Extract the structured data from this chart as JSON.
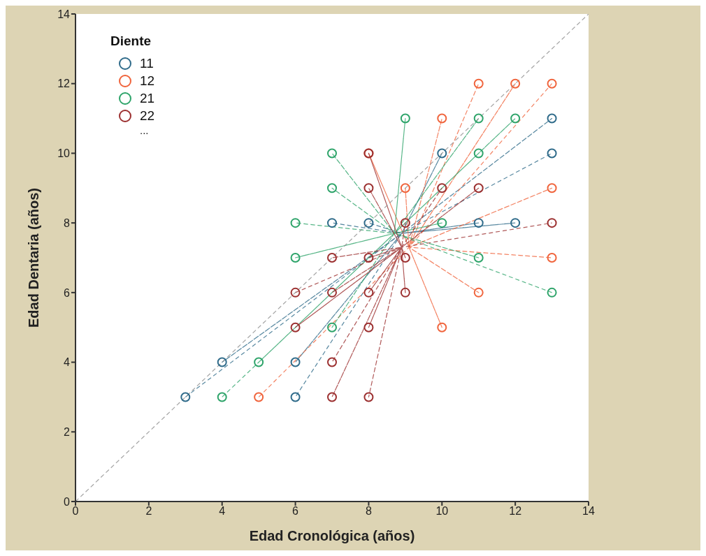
{
  "chart_data": {
    "type": "scatter",
    "xlabel": "Edad Cronológica (años)",
    "ylabel": "Edad Dentaria (años)",
    "legend_title": "Diente",
    "legend": "top left",
    "grid": false,
    "marker": "circle",
    "xlim": [
      0,
      14
    ],
    "ylim": [
      0,
      14
    ],
    "xticks": [
      0,
      2,
      4,
      6,
      8,
      10,
      12,
      14
    ],
    "yticks": [
      0,
      2,
      4,
      6,
      8,
      10,
      12,
      14
    ],
    "annotations": [
      "..."
    ],
    "series": [
      {
        "name": "11",
        "color": "#2f6b8a",
        "x": [
          3,
          4,
          6,
          6,
          7,
          8,
          10,
          11,
          12,
          13,
          13
        ],
        "values": [
          3,
          4,
          4,
          3,
          8,
          8,
          10,
          8,
          8,
          11,
          10
        ]
      },
      {
        "name": "12",
        "color": "#f0643c",
        "x": [
          5,
          8,
          9,
          10,
          10,
          11,
          11,
          12,
          13,
          13,
          13
        ],
        "values": [
          3,
          10,
          9,
          11,
          5,
          6,
          12,
          12,
          9,
          7,
          12
        ]
      },
      {
        "name": "21",
        "color": "#2ea46a",
        "x": [
          4,
          5,
          6,
          6,
          7,
          7,
          7,
          9,
          10,
          11,
          11,
          11,
          12,
          13
        ],
        "values": [
          3,
          4,
          8,
          7,
          10,
          9,
          5,
          11,
          8,
          11,
          10,
          7,
          11,
          6
        ]
      },
      {
        "name": "22",
        "color": "#9c3030",
        "x": [
          6,
          6,
          7,
          7,
          7,
          7,
          8,
          8,
          8,
          8,
          8,
          8,
          9,
          9,
          9,
          10,
          11,
          13
        ],
        "values": [
          6,
          5,
          7,
          6,
          4,
          3,
          9,
          7,
          6,
          5,
          3,
          10,
          8,
          7,
          6,
          9,
          9,
          8
        ]
      },
      {
        "type": "line",
        "marker": "none",
        "color": "#2f6b8a",
        "line_style": "dashed",
        "x": [
          3,
          8.9,
          4,
          8.9,
          6,
          8.9,
          6,
          8.9,
          7,
          8.9,
          8,
          8.9,
          10,
          8.9,
          11,
          8.9,
          12,
          8.9,
          13,
          8.9,
          13
        ],
        "values": [
          3,
          7.7,
          4,
          7.7,
          4,
          7.7,
          3,
          7.7,
          8,
          7.7,
          8,
          7.7,
          10,
          7.7,
          8,
          7.7,
          8,
          7.7,
          11,
          7.7,
          10
        ]
      },
      {
        "type": "line",
        "marker": "none",
        "color": "#f0643c",
        "line_style": "dashed",
        "x": [
          5,
          9.1,
          8,
          9.1,
          9,
          9.1,
          10,
          9.1,
          10,
          9.1,
          11,
          9.1,
          11,
          9.1,
          12,
          9.1,
          13,
          9.1,
          13,
          9.1,
          13
        ],
        "values": [
          3,
          7.3,
          10,
          7.3,
          9,
          7.3,
          11,
          7.3,
          5,
          7.3,
          6,
          7.3,
          12,
          7.3,
          12,
          7.3,
          9,
          7.3,
          7,
          7.3,
          12
        ]
      },
      {
        "type": "line",
        "marker": "none",
        "color": "#2ea46a",
        "line_style": "dashed",
        "x": [
          4,
          8.7,
          5,
          8.7,
          6,
          8.7,
          6,
          8.7,
          7,
          8.7,
          7,
          8.7,
          7,
          8.7,
          9,
          8.7,
          10,
          8.7,
          11,
          8.7,
          11,
          8.7,
          11,
          8.7,
          12,
          8.7,
          13
        ],
        "values": [
          3,
          7.7,
          4,
          7.7,
          8,
          7.7,
          7,
          7.7,
          10,
          7.7,
          9,
          7.7,
          5,
          7.7,
          11,
          7.7,
          8,
          7.7,
          11,
          7.7,
          10,
          7.7,
          7,
          7.7,
          11,
          7.7,
          6
        ]
      },
      {
        "type": "line",
        "marker": "none",
        "color": "#9c3030",
        "line_style": "dashed",
        "x": [
          6,
          8.9,
          6,
          8.9,
          7,
          8.9,
          7,
          8.9,
          7,
          8.9,
          7,
          8.9,
          8,
          8.9,
          8,
          8.9,
          8,
          8.9,
          8,
          8.9,
          8,
          8.9,
          8,
          8.9,
          9,
          8.9,
          9,
          8.9,
          9,
          8.9,
          10,
          8.9,
          11,
          8.9,
          13
        ],
        "values": [
          6,
          7.3,
          5,
          7.3,
          7,
          7.3,
          6,
          7.3,
          4,
          7.3,
          3,
          7.3,
          9,
          7.3,
          7,
          7.3,
          6,
          7.3,
          5,
          7.3,
          3,
          7.3,
          10,
          7.3,
          8,
          7.3,
          7,
          7.3,
          6,
          7.3,
          9,
          7.3,
          9,
          7.3,
          8
        ]
      },
      {
        "type": "line",
        "marker": "none",
        "color": "#8c8c8c",
        "line_style": "dashed",
        "x": [
          0,
          14
        ],
        "values": [
          0,
          14
        ]
      }
    ]
  }
}
